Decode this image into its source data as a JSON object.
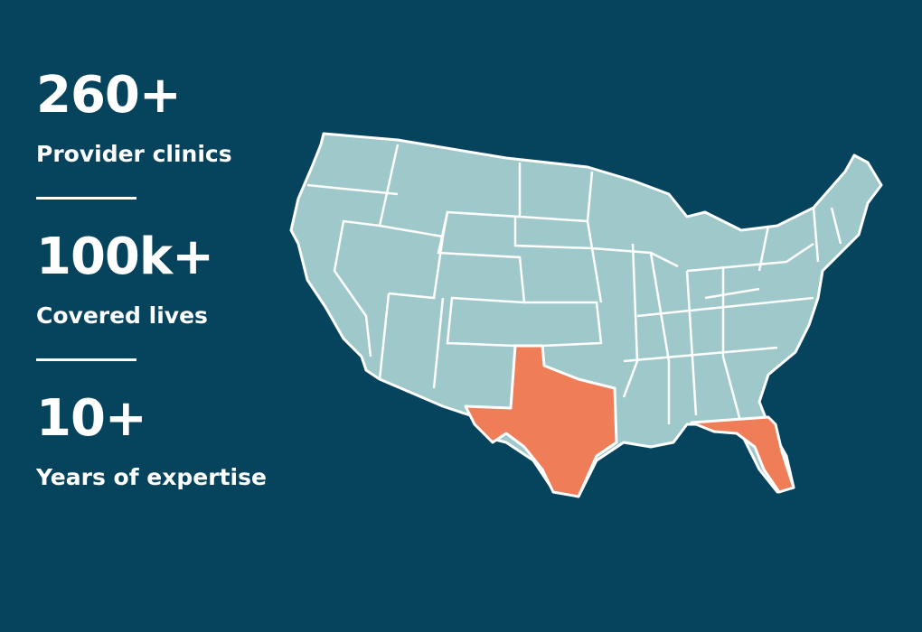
{
  "stats": [
    {
      "value": "260+",
      "label": "Provider clinics"
    },
    {
      "value": "100k+",
      "label": "Covered lives"
    },
    {
      "value": "10+",
      "label": "Years of expertise"
    }
  ]
}
